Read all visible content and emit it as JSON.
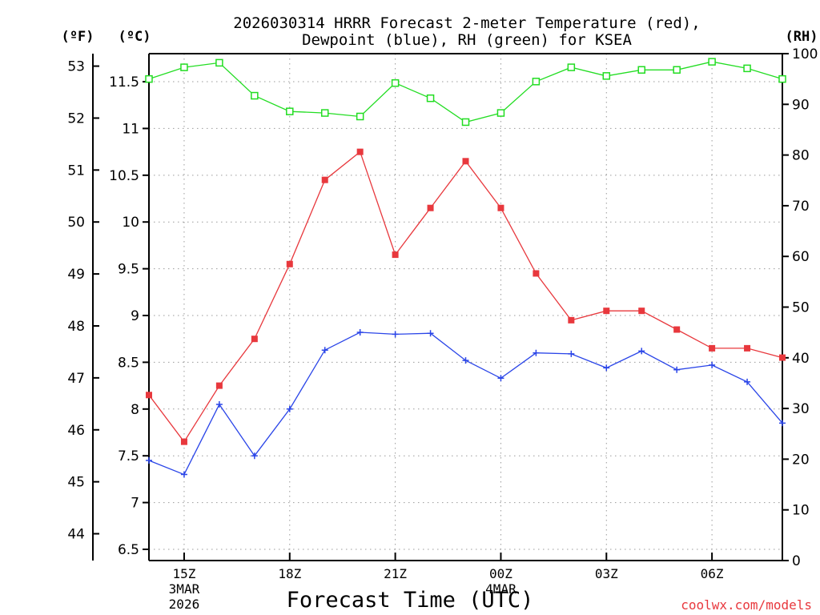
{
  "chart_data": {
    "type": "line",
    "title_line1": "2026030314 HRRR Forecast 2-meter Temperature (red),",
    "title_line2": "Dewpoint (blue), RH (green) for KSEA",
    "xlabel": "Forecast Time (UTC)",
    "credit": "coolwx.com/models",
    "axis_units": {
      "fahrenheit": "(ºF)",
      "celsius": "(ºC)",
      "rh": "(RH)"
    },
    "x_hours": [
      14,
      15,
      16,
      17,
      18,
      19,
      20,
      21,
      22,
      23,
      24,
      25,
      26,
      27,
      28,
      29,
      30,
      31,
      32
    ],
    "x_ticks": [
      {
        "hour": 15,
        "label": "15Z",
        "sub1": "3MAR",
        "sub2": "2026"
      },
      {
        "hour": 18,
        "label": "18Z",
        "sub1": "",
        "sub2": ""
      },
      {
        "hour": 21,
        "label": "21Z",
        "sub1": "",
        "sub2": ""
      },
      {
        "hour": 24,
        "label": "00Z",
        "sub1": "4MAR",
        "sub2": ""
      },
      {
        "hour": 27,
        "label": "03Z",
        "sub1": "",
        "sub2": ""
      },
      {
        "hour": 30,
        "label": "06Z",
        "sub1": "",
        "sub2": ""
      }
    ],
    "celsius_axis": {
      "range": [
        6.38,
        11.8
      ],
      "ticks": [
        6.5,
        7,
        7.5,
        8,
        8.5,
        9,
        9.5,
        10,
        10.5,
        11,
        11.5
      ]
    },
    "fahrenheit_axis": {
      "ticks": [
        44,
        45,
        46,
        47,
        48,
        49,
        50,
        51,
        52,
        53
      ]
    },
    "rh_axis": {
      "range": [
        0,
        100
      ],
      "ticks": [
        0,
        10,
        20,
        30,
        40,
        50,
        60,
        70,
        80,
        90,
        100
      ]
    },
    "series": [
      {
        "name": "Temperature",
        "units": "C",
        "color": "#e8383d",
        "marker": "filled-square",
        "values": [
          8.15,
          7.65,
          8.25,
          8.75,
          9.55,
          10.45,
          10.75,
          9.65,
          10.15,
          10.65,
          10.15,
          9.45,
          8.95,
          9.05,
          9.05,
          8.85,
          8.65,
          8.65,
          8.55
        ]
      },
      {
        "name": "Dewpoint",
        "units": "C",
        "color": "#2a45e8",
        "marker": "plus",
        "values": [
          7.45,
          7.3,
          8.05,
          7.5,
          8.0,
          8.63,
          8.82,
          8.8,
          8.81,
          8.52,
          8.33,
          8.6,
          8.59,
          8.44,
          8.62,
          8.42,
          8.47,
          8.29,
          7.85
        ]
      },
      {
        "name": "RH",
        "units": "%",
        "color": "#22dd22",
        "marker": "open-square",
        "values": [
          95,
          97.3,
          98.2,
          91.7,
          88.6,
          88.3,
          87.6,
          94.2,
          91.2,
          86.5,
          88.3,
          94.5,
          97.3,
          95.6,
          96.8,
          96.8,
          98.4,
          97.1,
          95
        ]
      }
    ]
  }
}
